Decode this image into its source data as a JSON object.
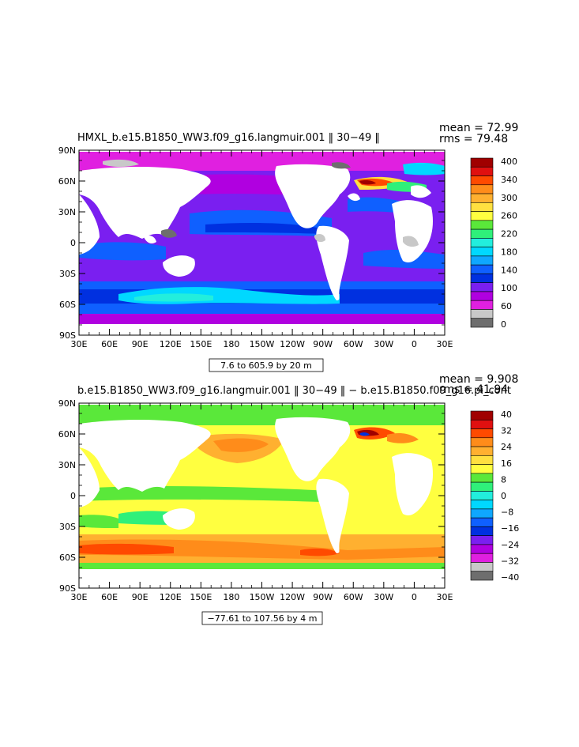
{
  "panels": [
    {
      "title": "HMXL_b.e15.B1850_WW3.f09_g16.langmuir.001 ‖ 30−49 ‖",
      "mean_text": "mean = 72.99",
      "rms_text": "rms = 79.48",
      "range_text": "7.6 to 605.9 by 20 m",
      "colorbar": {
        "labels": [
          "400",
          "340",
          "300",
          "260",
          "220",
          "180",
          "140",
          "100",
          "60",
          "0"
        ],
        "colors": [
          "#a00000",
          "#e01010",
          "#ff4a00",
          "#ff8c1a",
          "#ffb030",
          "#ffe040",
          "#ffff40",
          "#5ae83a",
          "#2ff07a",
          "#22eedd",
          "#00d8ff",
          "#0fa7ff",
          "#0f60ff",
          "#0030e0",
          "#7a1ff0",
          "#b000e0",
          "#e020e0",
          "#c8c8c8",
          "#6e6e6e"
        ]
      }
    },
    {
      "title": "b.e15.B1850_WW3.f09_g16.langmuir.001 ‖ 30−49 ‖ − b.e15.B1850.f09_g16.pi_cont",
      "mean_text": "mean = 9.908",
      "rms_text": "rms = 41.94",
      "range_text": "−77.61 to 107.56 by 4 m",
      "colorbar": {
        "labels": [
          "40",
          "32",
          "24",
          "16",
          "8",
          "0",
          "−8",
          "−16",
          "−24",
          "−32",
          "−40"
        ],
        "colors": [
          "#a00000",
          "#e01010",
          "#ff4a00",
          "#ff8c1a",
          "#ffb030",
          "#ffe040",
          "#ffff40",
          "#5ae83a",
          "#2ff07a",
          "#22eedd",
          "#00d8ff",
          "#0fa7ff",
          "#0f60ff",
          "#0030e0",
          "#7a1ff0",
          "#b000e0",
          "#e020e0",
          "#c8c8c8",
          "#6e6e6e"
        ]
      }
    }
  ],
  "x_ticks": [
    "30E",
    "60E",
    "90E",
    "120E",
    "150E",
    "180",
    "150W",
    "120W",
    "90W",
    "60W",
    "30W",
    "0",
    "30E"
  ],
  "y_ticks": [
    "90N",
    "60N",
    "30N",
    "0",
    "30S",
    "60S",
    "90S"
  ]
}
